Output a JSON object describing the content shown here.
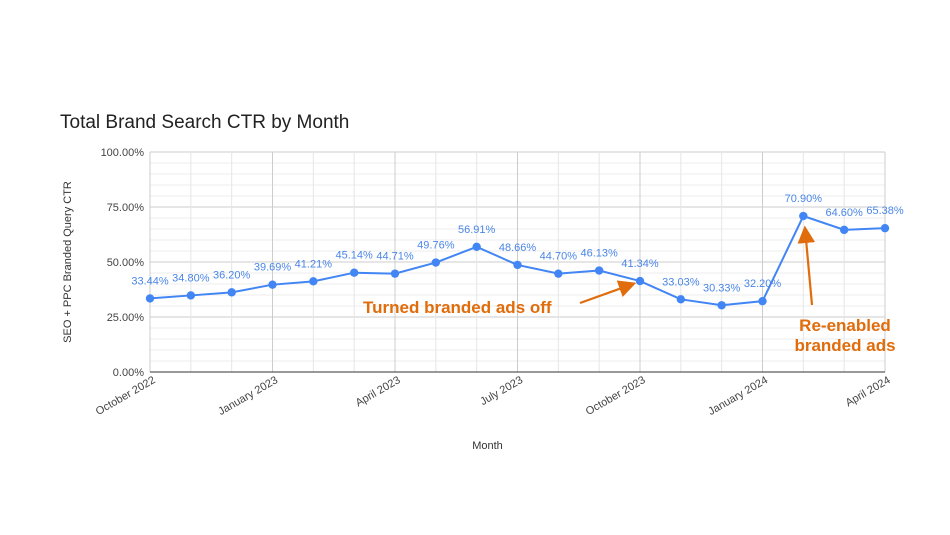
{
  "chart_data": {
    "type": "line",
    "title": "Total Brand Search CTR by Month",
    "xlabel": "Month",
    "ylabel": "SEO + PPC Branded Query CTR",
    "ylim": [
      0,
      100
    ],
    "yticks": [
      "0.00%",
      "25.00%",
      "50.00%",
      "75.00%",
      "100.00%"
    ],
    "grid": true,
    "x": [
      "October 2022",
      "November 2022",
      "December 2022",
      "January 2023",
      "February 2023",
      "March 2023",
      "April 2023",
      "May 2023",
      "June 2023",
      "July 2023",
      "August 2023",
      "September 2023",
      "October 2023",
      "November 2023",
      "December 2023",
      "January 2024",
      "February 2024",
      "March 2024",
      "April 2024"
    ],
    "xtick_labels": [
      "October 2022",
      "January 2023",
      "April 2023",
      "July 2023",
      "October 2023",
      "January 2024",
      "April 2024"
    ],
    "series": [
      {
        "name": "SEO + PPC Branded Query CTR",
        "color": "#4285f4",
        "values": [
          33.44,
          34.8,
          36.2,
          39.69,
          41.21,
          45.14,
          44.71,
          49.76,
          56.91,
          48.66,
          44.7,
          46.13,
          41.34,
          33.03,
          30.33,
          32.2,
          70.9,
          64.6,
          65.38
        ],
        "labels": [
          "33.44%",
          "34.80%",
          "36.20%",
          "39.69%",
          "41.21%",
          "45.14%",
          "44.71%",
          "49.76%",
          "56.91%",
          "48.66%",
          "44.70%",
          "46.13%",
          "41.34%",
          "33.03%",
          "30.33%",
          "32.20%",
          "70.90%",
          "64.60%",
          "65.38%"
        ]
      }
    ],
    "annotations": [
      {
        "text": "Turned branded ads off",
        "target_index": 12,
        "color": "#e06c0b"
      },
      {
        "text_lines": [
          "Re-enabled",
          "branded ads"
        ],
        "target_index": 16,
        "color": "#e06c0b"
      }
    ]
  }
}
